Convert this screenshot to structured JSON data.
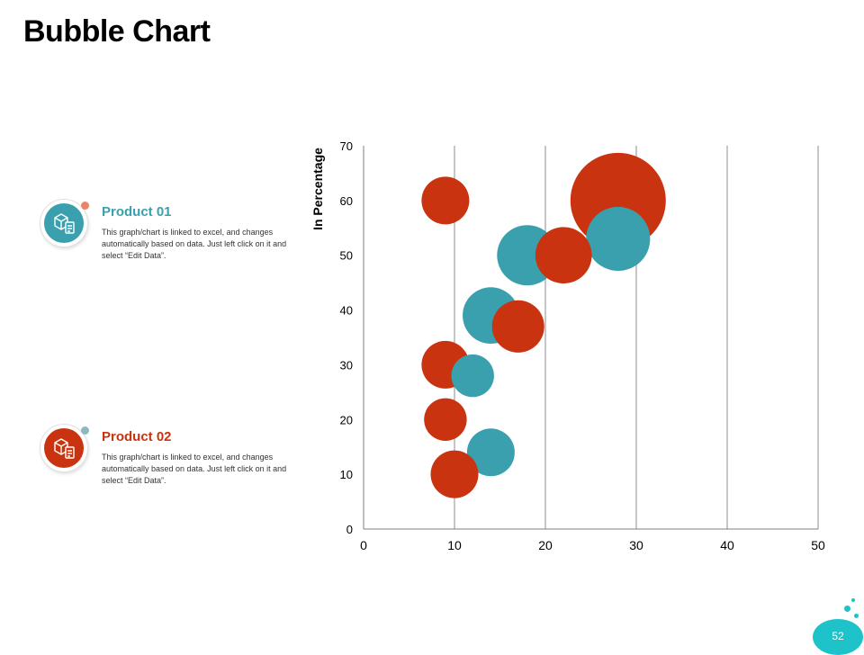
{
  "slide": {
    "title": "Bubble Chart",
    "page_number": "52"
  },
  "legend": [
    {
      "title": "Product 01",
      "color": "#3aa0ad",
      "icon": "package-clipboard-icon",
      "description": "This graph/chart is linked to excel, and changes automatically based on data. Just left click on it and select “Edit Data”."
    },
    {
      "title": "Product 02",
      "color": "#c9330f",
      "icon": "package-clipboard-icon",
      "description": "This graph/chart is linked to excel, and changes automatically based on data. Just left click on it and select “Edit Data”."
    }
  ],
  "colors": {
    "accent_teal": "#1ec2c9",
    "product01": "#3aa0ad",
    "product02": "#c9330f",
    "gridline": "#7f7f7f"
  },
  "chart_data": {
    "type": "scatter",
    "subtype": "bubble",
    "title": "",
    "xlabel": "",
    "ylabel": "In Percentage",
    "xlim": [
      0,
      50
    ],
    "ylim": [
      0,
      70
    ],
    "xticks": [
      "0",
      "10",
      "20",
      "30",
      "40",
      "50"
    ],
    "yticks": [
      "0",
      "10",
      "20",
      "30",
      "40",
      "50",
      "60",
      "70"
    ],
    "grid": "vertical",
    "legend": "left",
    "series": [
      {
        "color": "#3aa0ad",
        "points": [
          {
            "x": 14,
            "y": 14,
            "size": 5
          },
          {
            "x": 12,
            "y": 28,
            "size": 4
          },
          {
            "x": 14,
            "y": 39,
            "size": 7
          },
          {
            "x": 18,
            "y": 50,
            "size": 8
          },
          {
            "x": 28,
            "y": 53,
            "size": 9
          }
        ]
      },
      {
        "color": "#c9330f",
        "points": [
          {
            "x": 10,
            "y": 10,
            "size": 5
          },
          {
            "x": 9,
            "y": 20,
            "size": 4
          },
          {
            "x": 9,
            "y": 30,
            "size": 5
          },
          {
            "x": 17,
            "y": 37,
            "size": 6
          },
          {
            "x": 22,
            "y": 50,
            "size": 7
          },
          {
            "x": 28,
            "y": 60,
            "size": 20
          },
          {
            "x": 9,
            "y": 60,
            "size": 5
          }
        ]
      }
    ]
  }
}
